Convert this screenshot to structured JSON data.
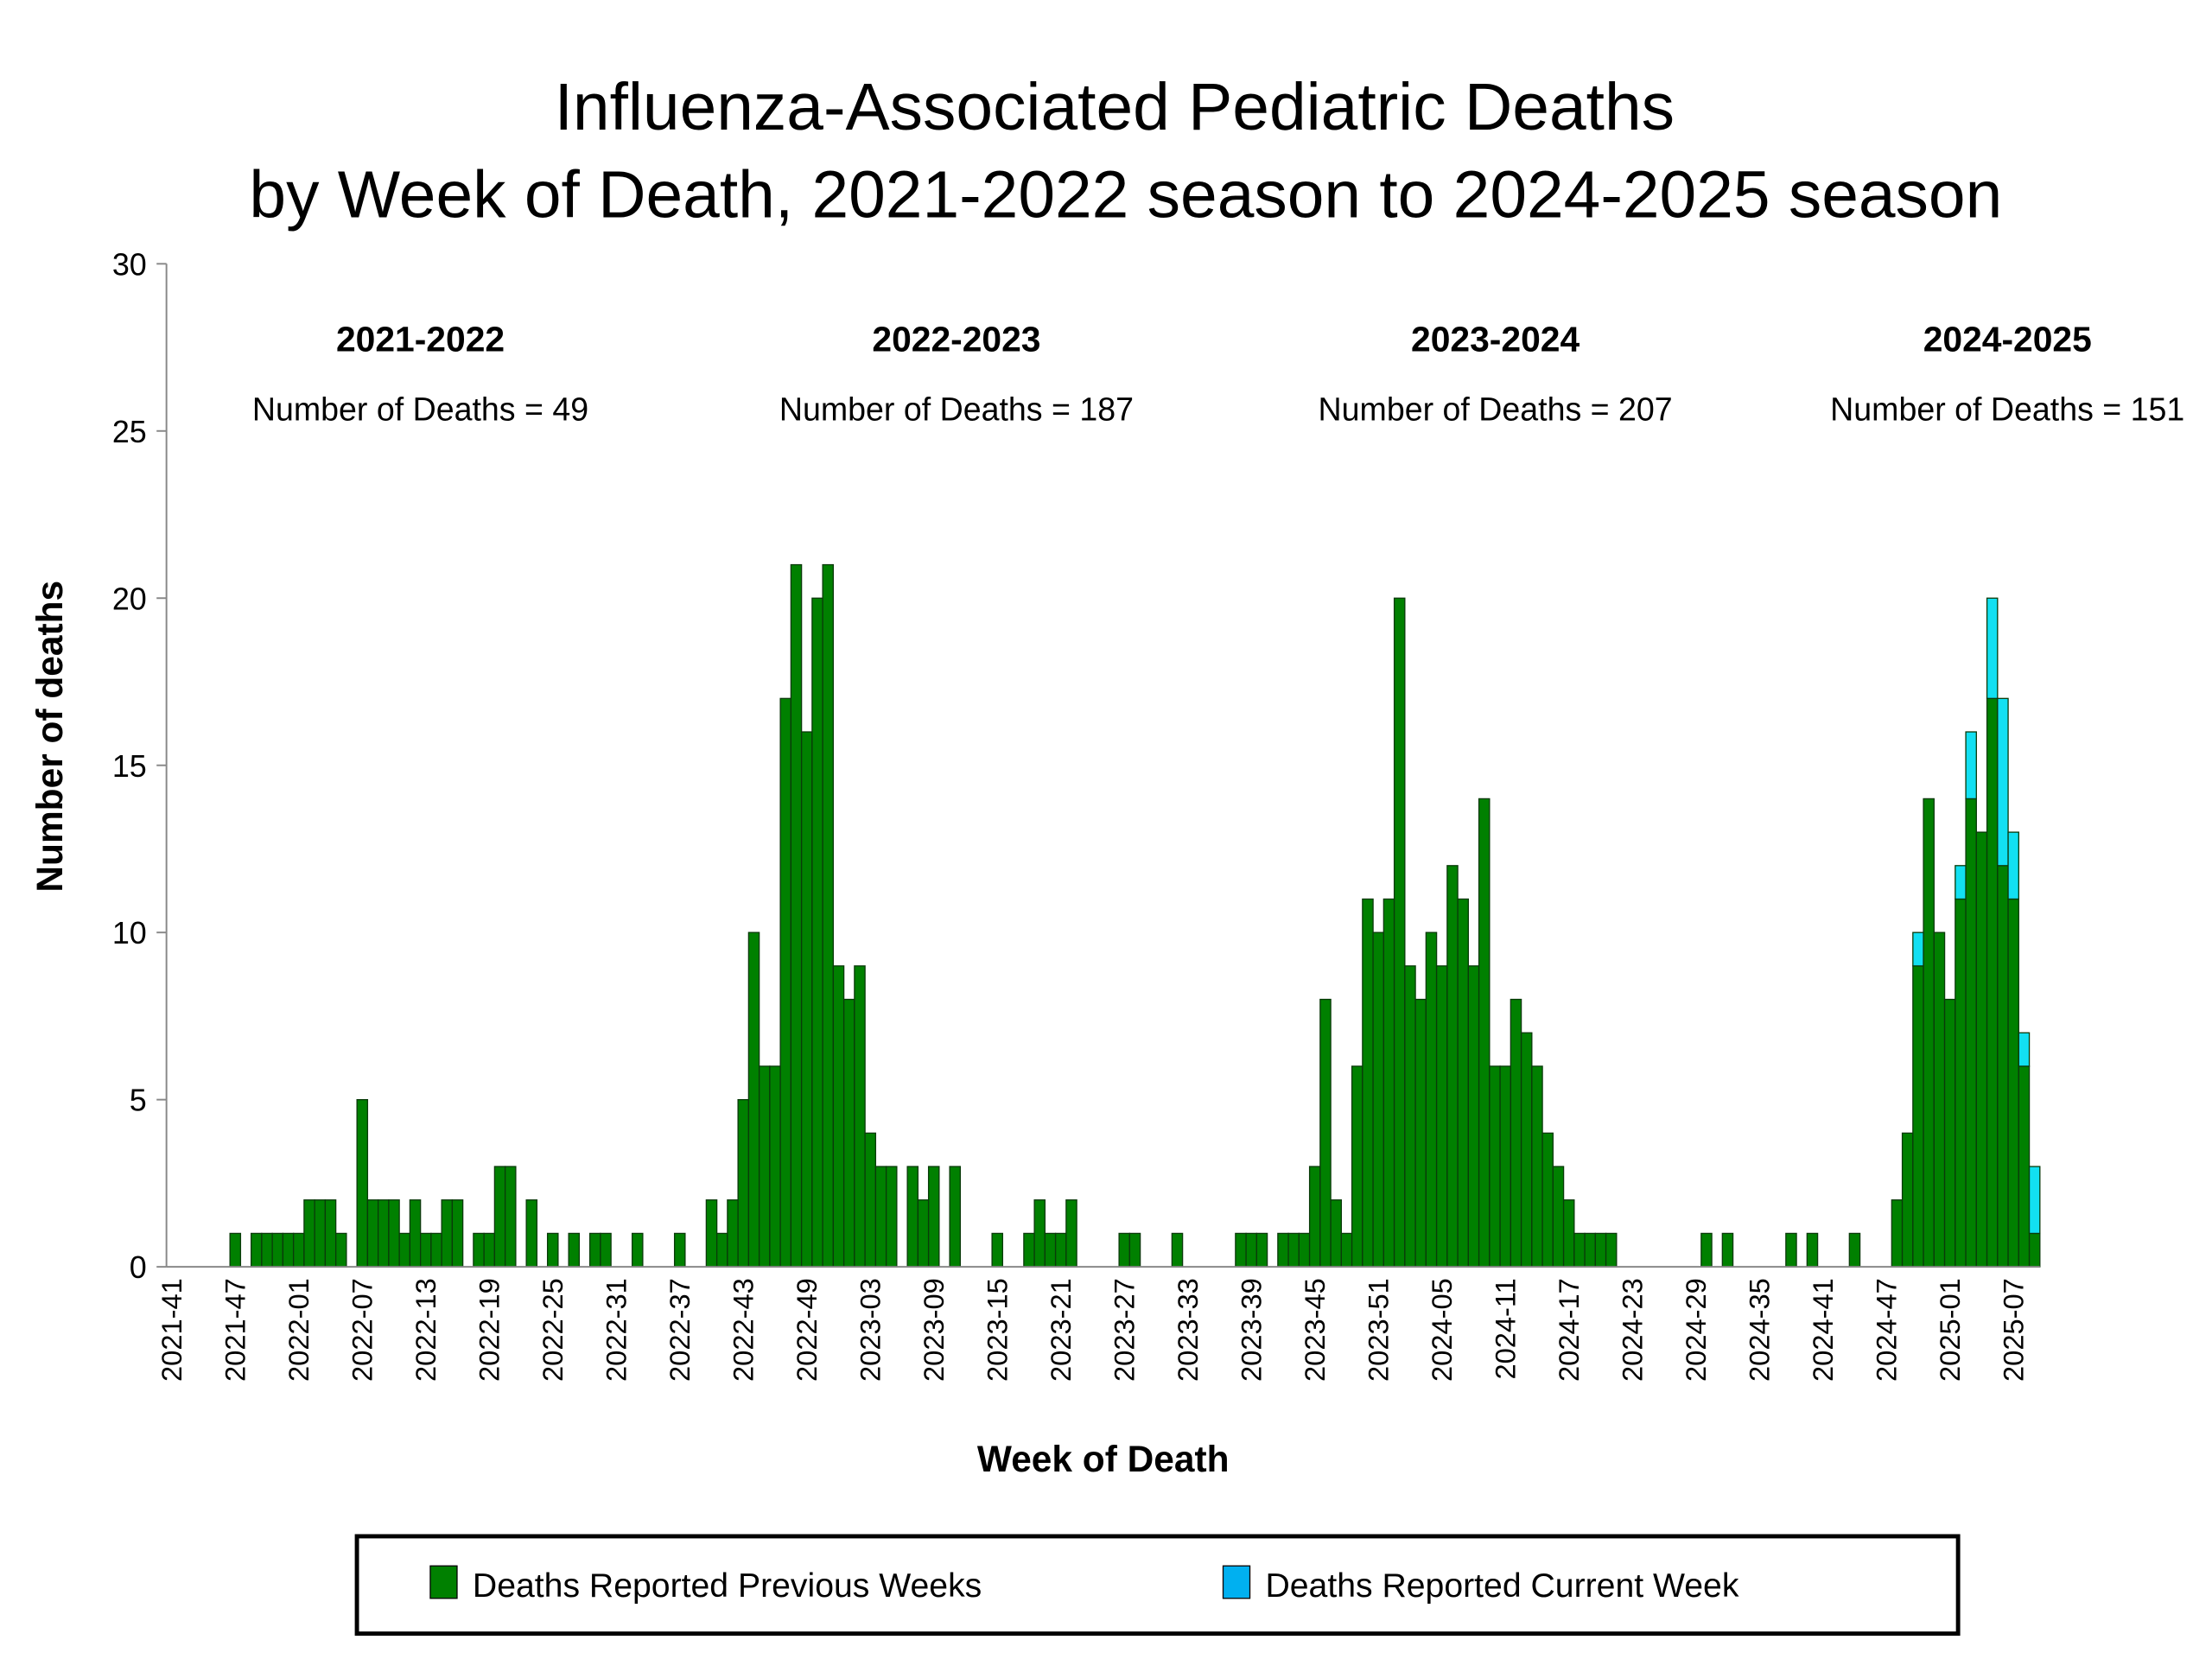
{
  "chart_data": {
    "type": "stacked-bar",
    "title": [
      "Influenza-Associated Pediatric Deaths",
      "by Week of Death, 2021-2022 season to 2024-2025 season"
    ],
    "x_label": "Week of Death",
    "y_label": "Number of deaths",
    "categories": [
      "2021-41",
      null,
      null,
      null,
      null,
      null,
      "2021-47",
      null,
      null,
      null,
      null,
      null,
      "2022-01",
      null,
      null,
      null,
      null,
      null,
      "2022-07",
      null,
      null,
      null,
      null,
      null,
      "2022-13",
      null,
      null,
      null,
      null,
      null,
      "2022-19",
      null,
      null,
      null,
      null,
      null,
      "2022-25",
      null,
      null,
      null,
      null,
      null,
      "2022-31",
      null,
      null,
      null,
      null,
      null,
      "2022-37",
      null,
      null,
      null,
      null,
      null,
      "2022-43",
      null,
      null,
      null,
      null,
      null,
      "2022-49",
      null,
      null,
      null,
      null,
      null,
      "2023-03",
      null,
      null,
      null,
      null,
      null,
      "2023-09",
      null,
      null,
      null,
      null,
      null,
      "2023-15",
      null,
      null,
      null,
      null,
      null,
      "2023-21",
      null,
      null,
      null,
      null,
      null,
      "2023-27",
      null,
      null,
      null,
      null,
      null,
      "2023-33",
      null,
      null,
      null,
      null,
      null,
      "2023-39",
      null,
      null,
      null,
      null,
      null,
      "2023-45",
      null,
      null,
      null,
      null,
      null,
      "2023-51",
      null,
      null,
      null,
      null,
      null,
      "2024-05",
      null,
      null,
      null,
      null,
      null,
      "2024-11",
      null,
      null,
      null,
      null,
      null,
      "2024-17",
      null,
      null,
      null,
      null,
      null,
      "2024-23",
      null,
      null,
      null,
      null,
      null,
      "2024-29",
      null,
      null,
      null,
      null,
      null,
      "2024-35",
      null,
      null,
      null,
      null,
      null,
      "2024-41",
      null,
      null,
      null,
      null,
      null,
      "2024-47",
      null,
      null,
      null,
      null,
      null,
      "2025-01",
      null,
      null,
      null,
      null,
      null,
      "2025-07",
      null,
      null
    ],
    "series": [
      {
        "name": "Deaths Reported Previous Weeks",
        "color": "#008000",
        "values": [
          0,
          0,
          0,
          0,
          0,
          0,
          1,
          0,
          1,
          1,
          1,
          1,
          1,
          2,
          2,
          2,
          1,
          0,
          5,
          2,
          2,
          2,
          1,
          2,
          1,
          1,
          2,
          2,
          0,
          1,
          1,
          3,
          3,
          0,
          2,
          0,
          1,
          0,
          1,
          0,
          1,
          1,
          0,
          0,
          1,
          0,
          0,
          0,
          1,
          0,
          0,
          2,
          1,
          2,
          5,
          10,
          6,
          6,
          17,
          21,
          16,
          20,
          21,
          9,
          8,
          9,
          4,
          3,
          3,
          0,
          3,
          2,
          3,
          0,
          3,
          0,
          0,
          0,
          1,
          0,
          0,
          1,
          2,
          1,
          1,
          2,
          0,
          0,
          0,
          0,
          1,
          1,
          0,
          0,
          0,
          1,
          0,
          0,
          0,
          0,
          0,
          1,
          1,
          1,
          0,
          1,
          1,
          1,
          3,
          8,
          2,
          1,
          6,
          11,
          10,
          11,
          20,
          9,
          8,
          10,
          9,
          12,
          11,
          9,
          14,
          6,
          6,
          8,
          7,
          6,
          4,
          3,
          2,
          1,
          1,
          1,
          1,
          0,
          0,
          0,
          0,
          0,
          0,
          0,
          0,
          1,
          0,
          1,
          0,
          0,
          0,
          0,
          0,
          1,
          0,
          1,
          0,
          0,
          0,
          1,
          0,
          0,
          0,
          2,
          4,
          9,
          14,
          10,
          8,
          11,
          14,
          13,
          17,
          12,
          11,
          6,
          1
        ]
      },
      {
        "name": "Deaths Reported Current Week",
        "color": "#12e0f2",
        "legend_color": "#00b0f0",
        "values": [
          0,
          0,
          0,
          0,
          0,
          0,
          0,
          0,
          0,
          0,
          0,
          0,
          0,
          0,
          0,
          0,
          0,
          0,
          0,
          0,
          0,
          0,
          0,
          0,
          0,
          0,
          0,
          0,
          0,
          0,
          0,
          0,
          0,
          0,
          0,
          0,
          0,
          0,
          0,
          0,
          0,
          0,
          0,
          0,
          0,
          0,
          0,
          0,
          0,
          0,
          0,
          0,
          0,
          0,
          0,
          0,
          0,
          0,
          0,
          0,
          0,
          0,
          0,
          0,
          0,
          0,
          0,
          0,
          0,
          0,
          0,
          0,
          0,
          0,
          0,
          0,
          0,
          0,
          0,
          0,
          0,
          0,
          0,
          0,
          0,
          0,
          0,
          0,
          0,
          0,
          0,
          0,
          0,
          0,
          0,
          0,
          0,
          0,
          0,
          0,
          0,
          0,
          0,
          0,
          0,
          0,
          0,
          0,
          0,
          0,
          0,
          0,
          0,
          0,
          0,
          0,
          0,
          0,
          0,
          0,
          0,
          0,
          0,
          0,
          0,
          0,
          0,
          0,
          0,
          0,
          0,
          0,
          0,
          0,
          0,
          0,
          0,
          0,
          0,
          0,
          0,
          0,
          0,
          0,
          0,
          0,
          0,
          0,
          0,
          0,
          0,
          0,
          0,
          0,
          0,
          0,
          0,
          0,
          0,
          0,
          0,
          0,
          0,
          0,
          0,
          1,
          0,
          0,
          0,
          1,
          2,
          0,
          3,
          5,
          2,
          1,
          2
        ]
      }
    ],
    "annotations": [
      {
        "season": "2021-2022",
        "text": "Number of Deaths = 49"
      },
      {
        "season": "2022-2023",
        "text": "Number of Deaths = 187"
      },
      {
        "season": "2023-2024",
        "text": "Number of Deaths = 207"
      },
      {
        "season": "2024-2025",
        "text": "Number of Deaths = 151"
      }
    ],
    "ylim": [
      0,
      30
    ],
    "yticks": [
      0,
      5,
      10,
      15,
      20,
      25,
      30
    ],
    "grid": false,
    "legend": "bottom"
  }
}
